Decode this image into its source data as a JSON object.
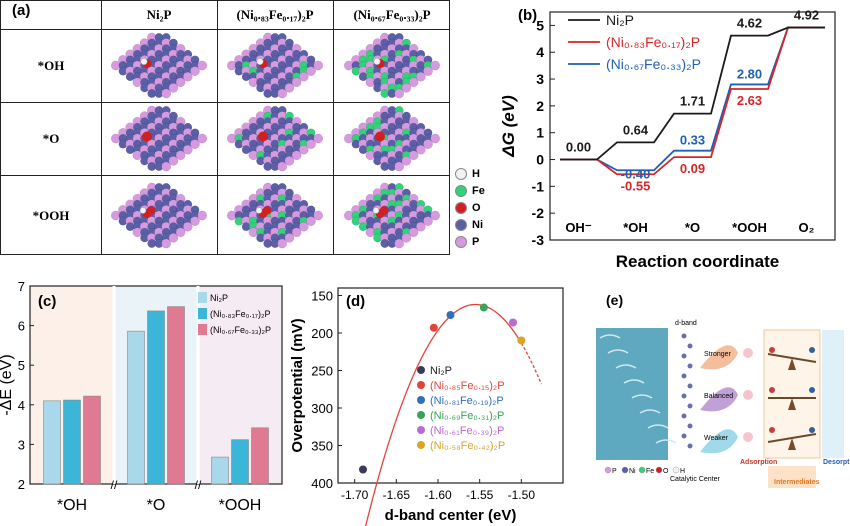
{
  "panel_a": {
    "label": "(a)",
    "columns": [
      "Ni₂P",
      "(Ni₀.₈₃Fe₀.₁₇)₂P",
      "(Ni₀.₆₇Fe₀.₃₃)₂P"
    ],
    "rows": [
      "*OH",
      "*O",
      "*OOH"
    ],
    "key": [
      {
        "label": "H",
        "color": "#f2f2f2"
      },
      {
        "label": "Fe",
        "color": "#32d27a"
      },
      {
        "label": "O",
        "color": "#d21f1f"
      },
      {
        "label": "Ni",
        "color": "#5a5fa8"
      },
      {
        "label": "P",
        "color": "#d79ae0"
      }
    ]
  },
  "chart_data": [
    {
      "panel": "(b)",
      "type": "line",
      "ylabel": "ΔG (eV)",
      "xlabel": "Reaction coordinate",
      "categories": [
        "OH⁻",
        "*OH",
        "*O",
        "*OOH",
        "O₂"
      ],
      "ylim": [
        -3,
        5.5
      ],
      "yticks": [
        -3,
        -2,
        -1,
        0,
        1,
        2,
        3,
        4,
        5
      ],
      "series": [
        {
          "name": "Ni₂P",
          "color": "#1a1a1a",
          "values": [
            0.0,
            0.64,
            1.71,
            4.62,
            4.92
          ]
        },
        {
          "name": "(Ni₀.₈₃Fe₀.₁₇)₂P",
          "color": "#d6262a",
          "values": [
            0.0,
            -0.55,
            0.09,
            2.63,
            4.92
          ]
        },
        {
          "name": "(Ni₀.₆₇Fe₀.₃₃)₂P",
          "color": "#1f5fb4",
          "values": [
            0.0,
            -0.4,
            0.33,
            2.8,
            4.92
          ]
        }
      ],
      "labels": [
        {
          "text": "0.00",
          "step": 0,
          "series": 0
        },
        {
          "text": "0.64",
          "step": 1,
          "series": 0
        },
        {
          "text": "1.71",
          "step": 2,
          "series": 0
        },
        {
          "text": "4.62",
          "step": 3,
          "series": 0
        },
        {
          "text": "4.92",
          "step": 4,
          "series": 0
        },
        {
          "text": "-0.40",
          "step": 1,
          "series": 2
        },
        {
          "text": "-0.55",
          "step": 1,
          "series": 1
        },
        {
          "text": "0.33",
          "step": 2,
          "series": 2
        },
        {
          "text": "0.09",
          "step": 2,
          "series": 1
        },
        {
          "text": "2.80",
          "step": 3,
          "series": 2
        },
        {
          "text": "2.63",
          "step": 3,
          "series": 1
        }
      ]
    },
    {
      "panel": "(c)",
      "type": "bar",
      "ylabel": "-ΔE (eV)",
      "categories": [
        "*OH",
        "*O",
        "*OOH"
      ],
      "ylim": [
        2,
        7
      ],
      "yticks": [
        2,
        3,
        4,
        5,
        6,
        7
      ],
      "series": [
        {
          "name": "Ni₂P",
          "color": "#a8d8ea",
          "values": [
            4.1,
            5.86,
            2.68
          ]
        },
        {
          "name": "(Ni₀.₈₃Fe₀.₁₇)₂P",
          "color": "#3bb6d8",
          "values": [
            4.12,
            6.37,
            3.12
          ]
        },
        {
          "name": "(Ni₀.₆₇Fe₀.₃₃)₂P",
          "color": "#e07a92",
          "values": [
            4.22,
            6.48,
            3.42
          ]
        }
      ],
      "bands": [
        "#fdf0e8",
        "#eaf4f8",
        "#f5ecf3"
      ]
    },
    {
      "panel": "(d)",
      "type": "scatter",
      "xlabel": "d-band center (eV)",
      "ylabel": "Overpotential (mV)",
      "xlim": [
        -1.72,
        -1.45
      ],
      "ylim": [
        400,
        140
      ],
      "xticks": [
        -1.7,
        -1.65,
        -1.6,
        -1.55,
        -1.5
      ],
      "yticks": [
        150,
        200,
        250,
        300,
        350,
        400
      ],
      "series": [
        {
          "name": "Ni₂P",
          "color": "#3a3a5a",
          "x": -1.69,
          "y": 382
        },
        {
          "name": "(Ni₀.₈₅Fe₀.₁₅)₂P",
          "color": "#e2443a",
          "x": -1.605,
          "y": 193
        },
        {
          "name": "(Ni₀.₈₁Fe₀.₁₉)₂P",
          "color": "#2f6fc0",
          "x": -1.585,
          "y": 176
        },
        {
          "name": "(Ni₀.₆₉Fe₀.₃₁)₂P",
          "color": "#3aa35a",
          "x": -1.545,
          "y": 166
        },
        {
          "name": "(Ni₀.₆₁Fe₀.₃₉)₂P",
          "color": "#b86bd0",
          "x": -1.51,
          "y": 186
        },
        {
          "name": "(Ni₀.₅₈Fe₀.₄₂)₂P",
          "color": "#d8a524",
          "x": -1.5,
          "y": 210
        }
      ],
      "fit_curve": {
        "vertex_x": -1.555,
        "vertex_y": 162,
        "coefficient": 17000
      }
    }
  ],
  "panel_e": {
    "label": "(e)",
    "dband_label": "d-band",
    "levels": [
      "Stronger",
      "Balanced",
      "Weaker"
    ],
    "catalytic_center": "Catalytic Center",
    "atom_legend": [
      "P",
      "Ni",
      "Fe",
      "O",
      "H"
    ],
    "adsorption": "Adsorption",
    "intermediates": "Intermediates",
    "desorption": "Desorption"
  }
}
